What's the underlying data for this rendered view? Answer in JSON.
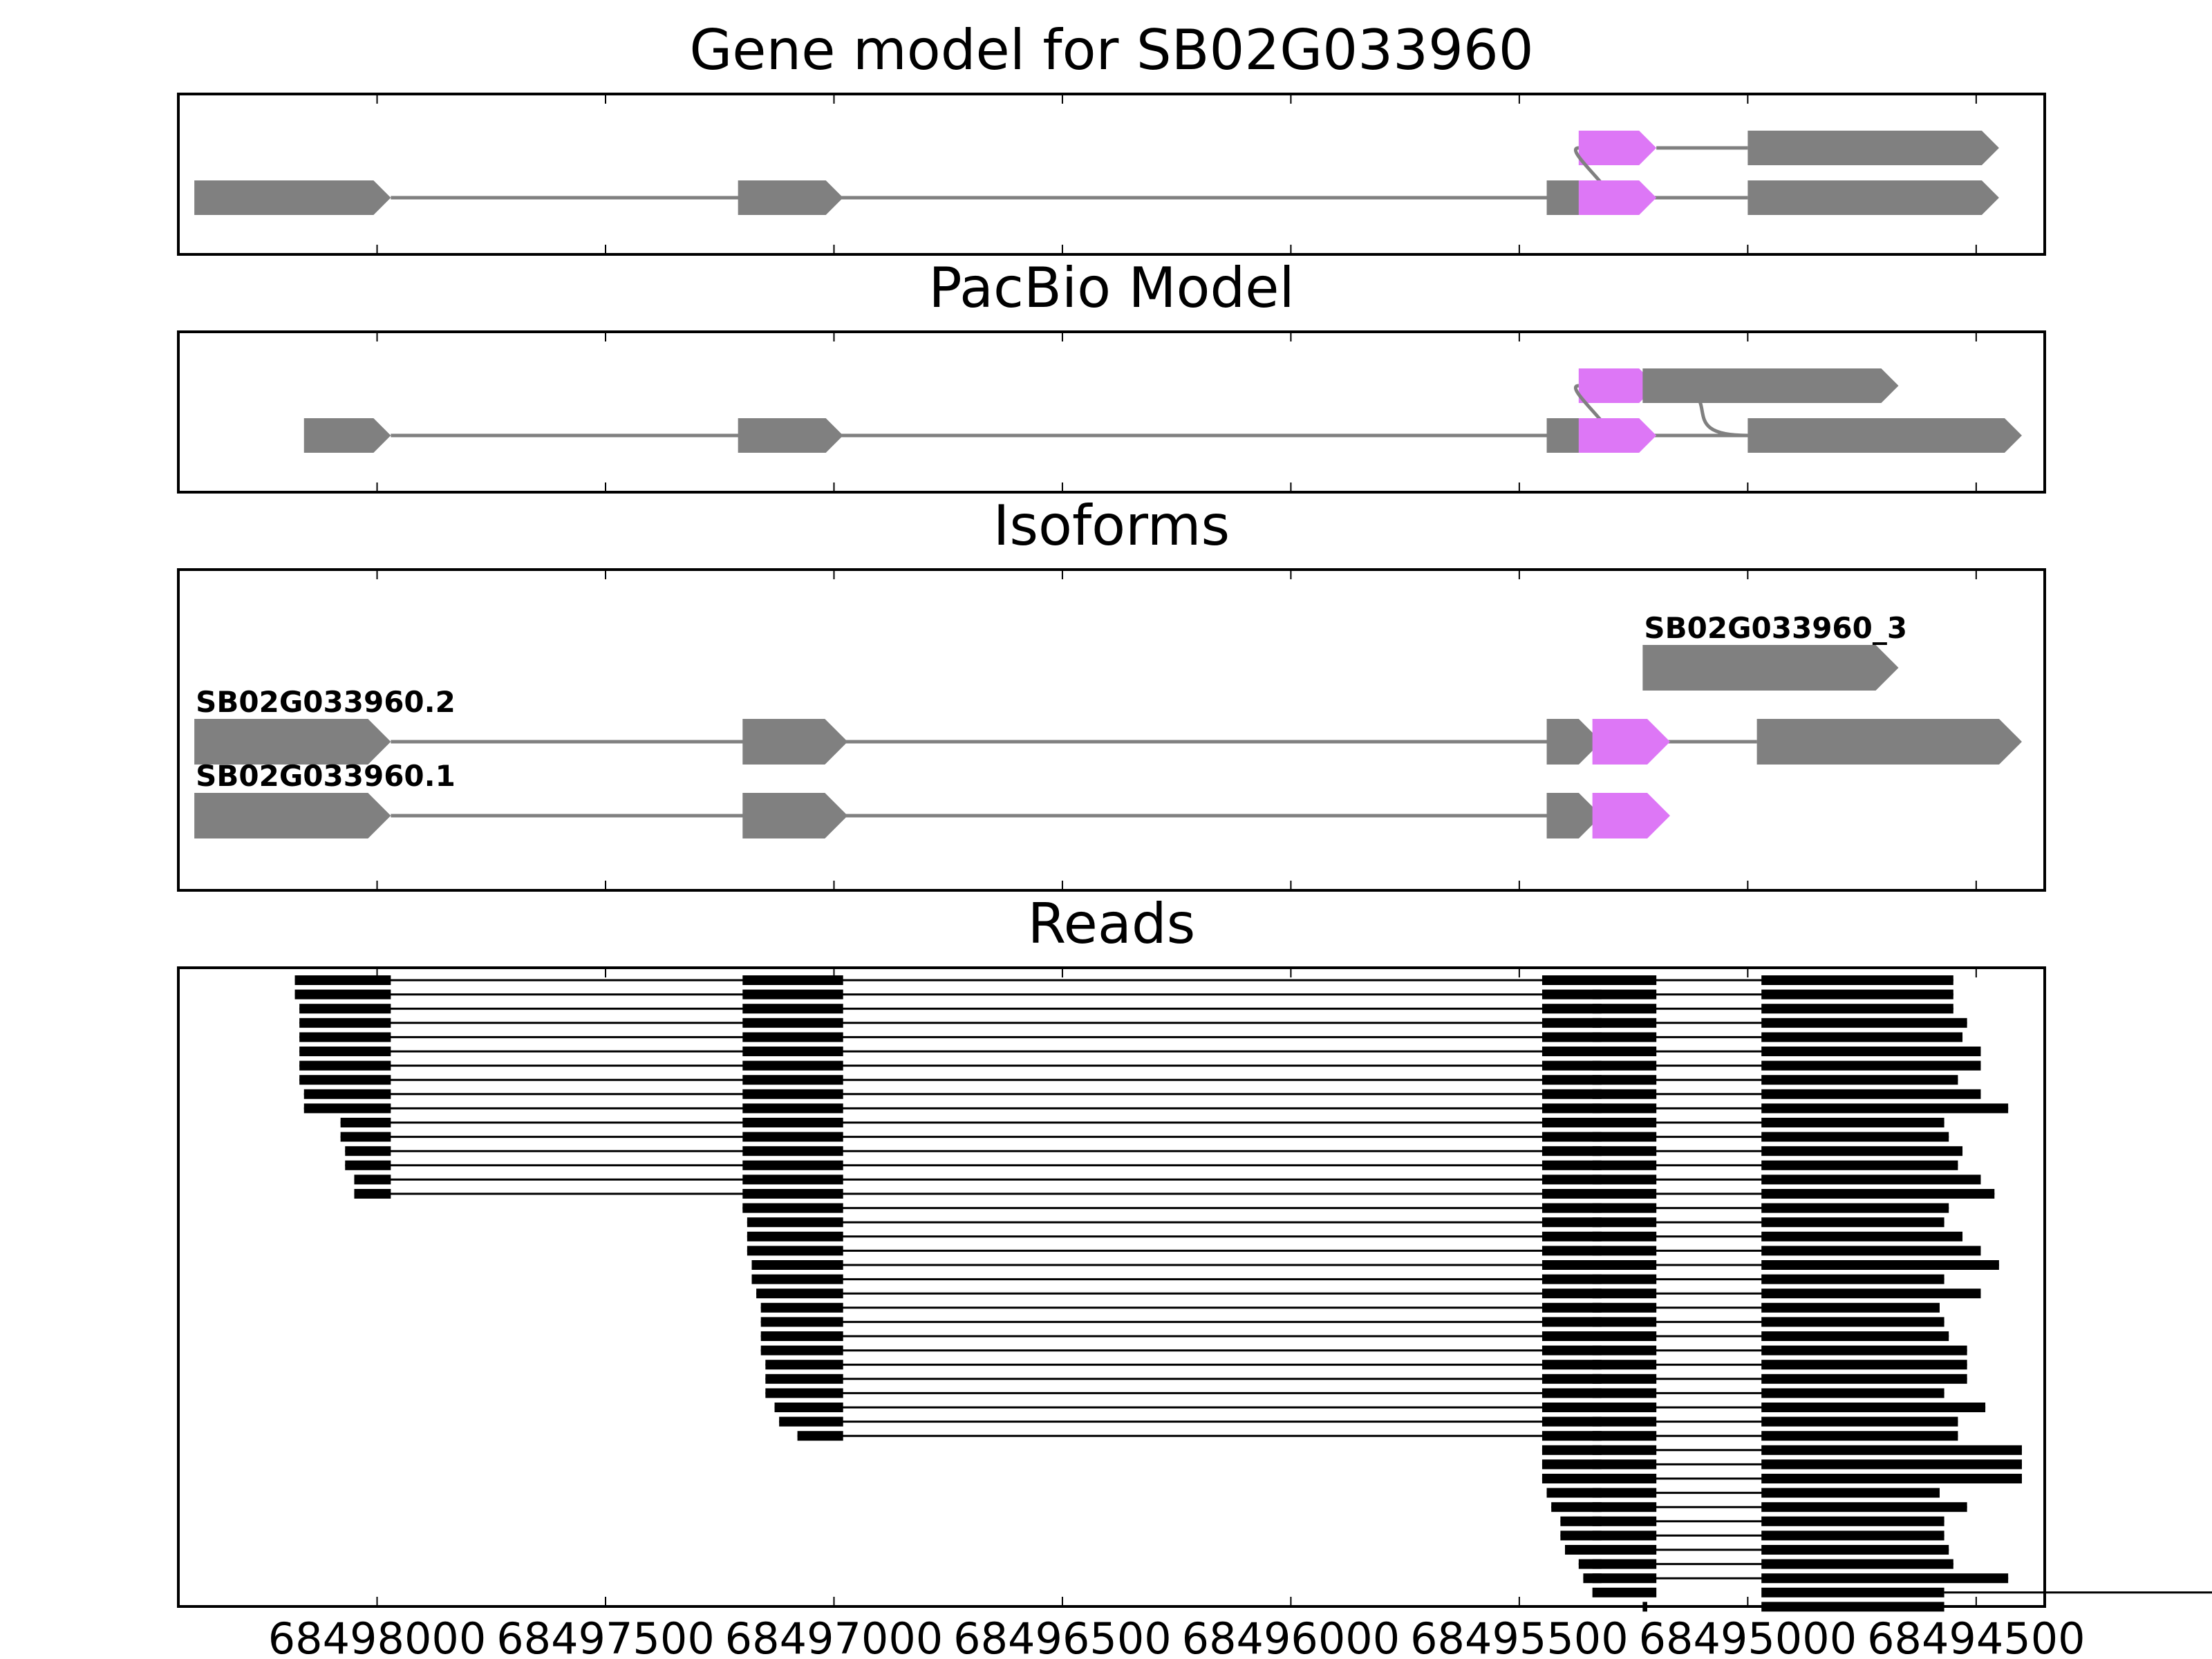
{
  "chart_data": {
    "type": "gene-structure",
    "x_axis": {
      "reversed": true,
      "ticks": [
        6849800,
        6849750,
        6849700,
        6849650,
        6849600,
        6849550,
        6849500,
        6849450
      ],
      "tick_labels": [
        "68498000",
        "68497500",
        "68497000",
        "68496500",
        "68496000",
        "68495500",
        "68495000",
        "68494500"
      ]
    },
    "colors": {
      "exon": "#808080",
      "alternative_exon": "#dd77f6",
      "exon_shading": "#e3e3fb",
      "intron_line": "#808080",
      "read": "#000000"
    },
    "exon_regions": [
      [
        6849797,
        6849838
      ],
      [
        6849698,
        6849720
      ],
      [
        6849541,
        6849552
      ],
      [
        6849518,
        6849534
      ],
      [
        6849446,
        6849495
      ]
    ],
    "panels": [
      {
        "title": "Gene model for SB02G033960",
        "tracks": [
          {
            "label": "",
            "exons": [
              {
                "start": 6849537,
                "end": 6849520,
                "color": "alternative"
              },
              {
                "start": 6849500,
                "end": 6849445,
                "color": "exon"
              }
            ],
            "connector_from": 1
          },
          {
            "label": "",
            "exons": [
              {
                "start": 6849840,
                "end": 6849797,
                "color": "exon"
              },
              {
                "start": 6849721,
                "end": 6849698,
                "color": "exon"
              },
              {
                "start": 6849544,
                "end": 6849531,
                "color": "exon"
              },
              {
                "start": 6849537,
                "end": 6849520,
                "color": "alternative"
              },
              {
                "start": 6849500,
                "end": 6849445,
                "color": "exon"
              }
            ]
          }
        ]
      },
      {
        "title": "PacBio Model",
        "tracks": [
          {
            "label": "",
            "exons": [
              {
                "start": 6849537,
                "end": 6849520,
                "color": "alternative"
              },
              {
                "start": 6849523,
                "end": 6849467,
                "color": "exon"
              }
            ],
            "connector_from": 1,
            "connector_to": 1
          },
          {
            "label": "",
            "exons": [
              {
                "start": 6849816,
                "end": 6849797,
                "color": "exon"
              },
              {
                "start": 6849721,
                "end": 6849698,
                "color": "exon"
              },
              {
                "start": 6849544,
                "end": 6849531,
                "color": "exon"
              },
              {
                "start": 6849537,
                "end": 6849520,
                "color": "alternative"
              },
              {
                "start": 6849500,
                "end": 6849440,
                "color": "exon"
              }
            ]
          }
        ]
      },
      {
        "title": "Isoforms",
        "tracks": [
          {
            "label": "SB02G033960_3",
            "exons": [
              {
                "start": 6849523,
                "end": 6849467,
                "color": "exon"
              }
            ]
          },
          {
            "label": "SB02G033960.2",
            "exons": [
              {
                "start": 6849840,
                "end": 6849797,
                "color": "exon"
              },
              {
                "start": 6849720,
                "end": 6849697,
                "color": "exon"
              },
              {
                "start": 6849544,
                "end": 6849532,
                "color": "exon"
              },
              {
                "start": 6849534,
                "end": 6849517,
                "color": "alternative"
              },
              {
                "start": 6849498,
                "end": 6849440,
                "color": "exon"
              }
            ]
          },
          {
            "label": "SB02G033960.1",
            "exons": [
              {
                "start": 6849840,
                "end": 6849797,
                "color": "exon"
              },
              {
                "start": 6849720,
                "end": 6849697,
                "color": "exon"
              },
              {
                "start": 6849544,
                "end": 6849532,
                "color": "exon"
              },
              {
                "start": 6849534,
                "end": 6849517,
                "color": "alternative"
              }
            ]
          }
        ]
      }
    ],
    "reads": {
      "title": "Reads",
      "columns": [
        "e1_start",
        "e2_start",
        "e3_start",
        "e5_end"
      ],
      "rows": [
        [
          6849818,
          6849720,
          6849545,
          6849455
        ],
        [
          6849818,
          6849720,
          6849545,
          6849455
        ],
        [
          6849817,
          6849720,
          6849545,
          6849455
        ],
        [
          6849817,
          6849720,
          6849545,
          6849452
        ],
        [
          6849817,
          6849720,
          6849545,
          6849453
        ],
        [
          6849817,
          6849720,
          6849545,
          6849449
        ],
        [
          6849817,
          6849720,
          6849545,
          6849449
        ],
        [
          6849817,
          6849720,
          6849545,
          6849454
        ],
        [
          6849816,
          6849720,
          6849545,
          6849449
        ],
        [
          6849816,
          6849720,
          6849545,
          6849443
        ],
        [
          6849808,
          6849720,
          6849545,
          6849457
        ],
        [
          6849808,
          6849720,
          6849545,
          6849456
        ],
        [
          6849807,
          6849720,
          6849545,
          6849453
        ],
        [
          6849807,
          6849720,
          6849545,
          6849454
        ],
        [
          6849805,
          6849720,
          6849545,
          6849449
        ],
        [
          6849805,
          6849720,
          6849545,
          6849446
        ],
        [
          null,
          6849720,
          6849545,
          6849456
        ],
        [
          null,
          6849719,
          6849545,
          6849457
        ],
        [
          null,
          6849719,
          6849545,
          6849453
        ],
        [
          null,
          6849719,
          6849545,
          6849449
        ],
        [
          null,
          6849718,
          6849545,
          6849445
        ],
        [
          null,
          6849718,
          6849545,
          6849457
        ],
        [
          null,
          6849717,
          6849545,
          6849449
        ],
        [
          null,
          6849716,
          6849545,
          6849458
        ],
        [
          null,
          6849716,
          6849545,
          6849457
        ],
        [
          null,
          6849716,
          6849545,
          6849456
        ],
        [
          null,
          6849716,
          6849545,
          6849452
        ],
        [
          null,
          6849715,
          6849545,
          6849452
        ],
        [
          null,
          6849715,
          6849545,
          6849452
        ],
        [
          null,
          6849715,
          6849545,
          6849457
        ],
        [
          null,
          6849713,
          6849545,
          6849448
        ],
        [
          null,
          6849712,
          6849545,
          6849454
        ],
        [
          null,
          6849708,
          6849545,
          6849454
        ],
        [
          null,
          null,
          6849545,
          6849440
        ],
        [
          null,
          null,
          6849545,
          6849440
        ],
        [
          null,
          null,
          6849545,
          6849440
        ],
        [
          null,
          null,
          6849544,
          6849458
        ],
        [
          null,
          null,
          6849543,
          6849452
        ],
        [
          null,
          null,
          6849541,
          6849457
        ],
        [
          null,
          null,
          6849541,
          6849457
        ],
        [
          null,
          null,
          6849540,
          6849456
        ],
        [
          null,
          null,
          6849537,
          6849455
        ],
        [
          null,
          null,
          6849536,
          6849443
        ],
        [
          null,
          null,
          null,
          6849457
        ]
      ],
      "last_read": {
        "start": 6849523,
        "end": 6849457
      }
    }
  }
}
